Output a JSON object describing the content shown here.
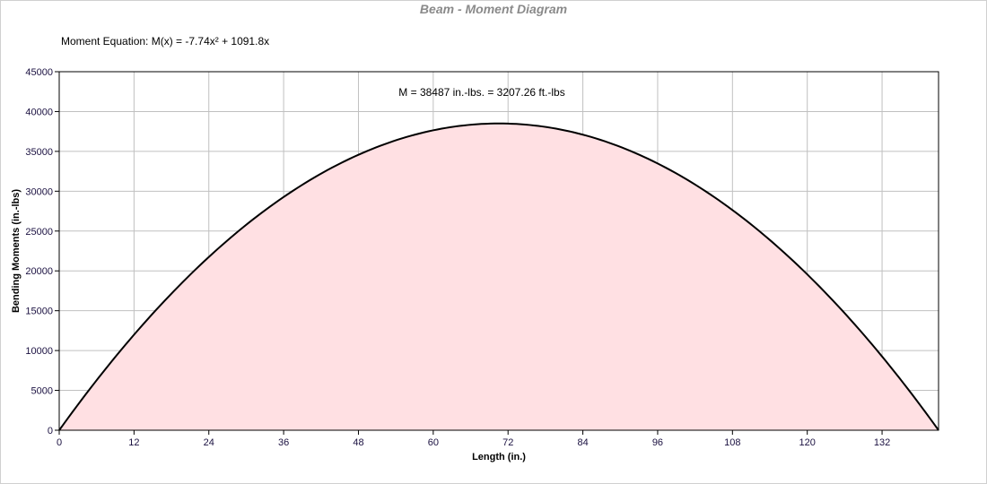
{
  "chart_data": {
    "type": "area",
    "title": "Beam - Moment Diagram",
    "equation_label": "Moment Equation:  M(x) = -7.74x² + 1091.8x",
    "equation_coefficients": {
      "a": -7.74,
      "b": 1091.8
    },
    "annotation": "M = 38487 in.-lbs. = 3207.26 ft.-lbs",
    "xlabel": "Length (in.)",
    "ylabel": "Bending Moments (in.-lbs)",
    "xlim": [
      0,
      141.06
    ],
    "ylim": [
      0,
      45000
    ],
    "x_ticks": [
      "0",
      "12",
      "24",
      "36",
      "48",
      "60",
      "72",
      "84",
      "96",
      "108",
      "120",
      "132"
    ],
    "y_ticks": [
      "0",
      "5000",
      "10000",
      "15000",
      "20000",
      "25000",
      "30000",
      "35000",
      "40000",
      "45000"
    ],
    "grid": true,
    "colors": {
      "fill": "#ffe0e3",
      "line": "#000000",
      "grid": "#c0c0c0",
      "title": "#8a8a8a",
      "tick_text": "#1a1040"
    }
  }
}
